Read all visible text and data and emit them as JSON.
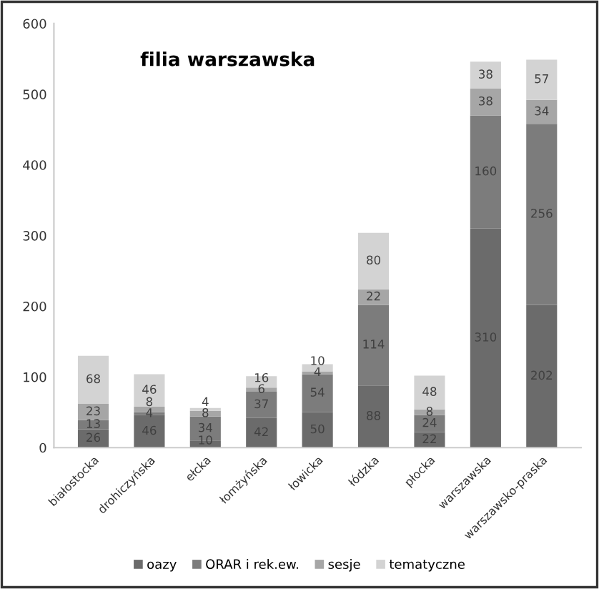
{
  "chart_data": {
    "type": "bar",
    "title": "filia warszawska",
    "stacked": true,
    "data_labels": true,
    "legend": "bottom",
    "grid": false,
    "categories": [
      "białostocka",
      "drohiczyńska",
      "ełcka",
      "łomżyńska",
      "łowicka",
      "łódzka",
      "płocka",
      "warszawska",
      "warszawsko-praska"
    ],
    "series": [
      {
        "name": "oazy",
        "color": "#6b6b6b",
        "values": [
          26,
          46,
          10,
          42,
          50,
          88,
          22,
          310,
          202
        ]
      },
      {
        "name": "ORAR i rek.ew.",
        "color": "#7c7c7c",
        "values": [
          13,
          4,
          34,
          37,
          54,
          114,
          24,
          160,
          256
        ]
      },
      {
        "name": "sesje",
        "color": "#a6a6a6",
        "values": [
          23,
          8,
          8,
          6,
          4,
          22,
          8,
          38,
          34
        ]
      },
      {
        "name": "tematyczne",
        "color": "#d3d3d3",
        "values": [
          68,
          46,
          4,
          16,
          10,
          80,
          48,
          38,
          57
        ]
      }
    ],
    "ylim": [
      0,
      600
    ],
    "yticks": [
      0,
      100,
      200,
      300,
      400,
      500,
      600
    ]
  }
}
